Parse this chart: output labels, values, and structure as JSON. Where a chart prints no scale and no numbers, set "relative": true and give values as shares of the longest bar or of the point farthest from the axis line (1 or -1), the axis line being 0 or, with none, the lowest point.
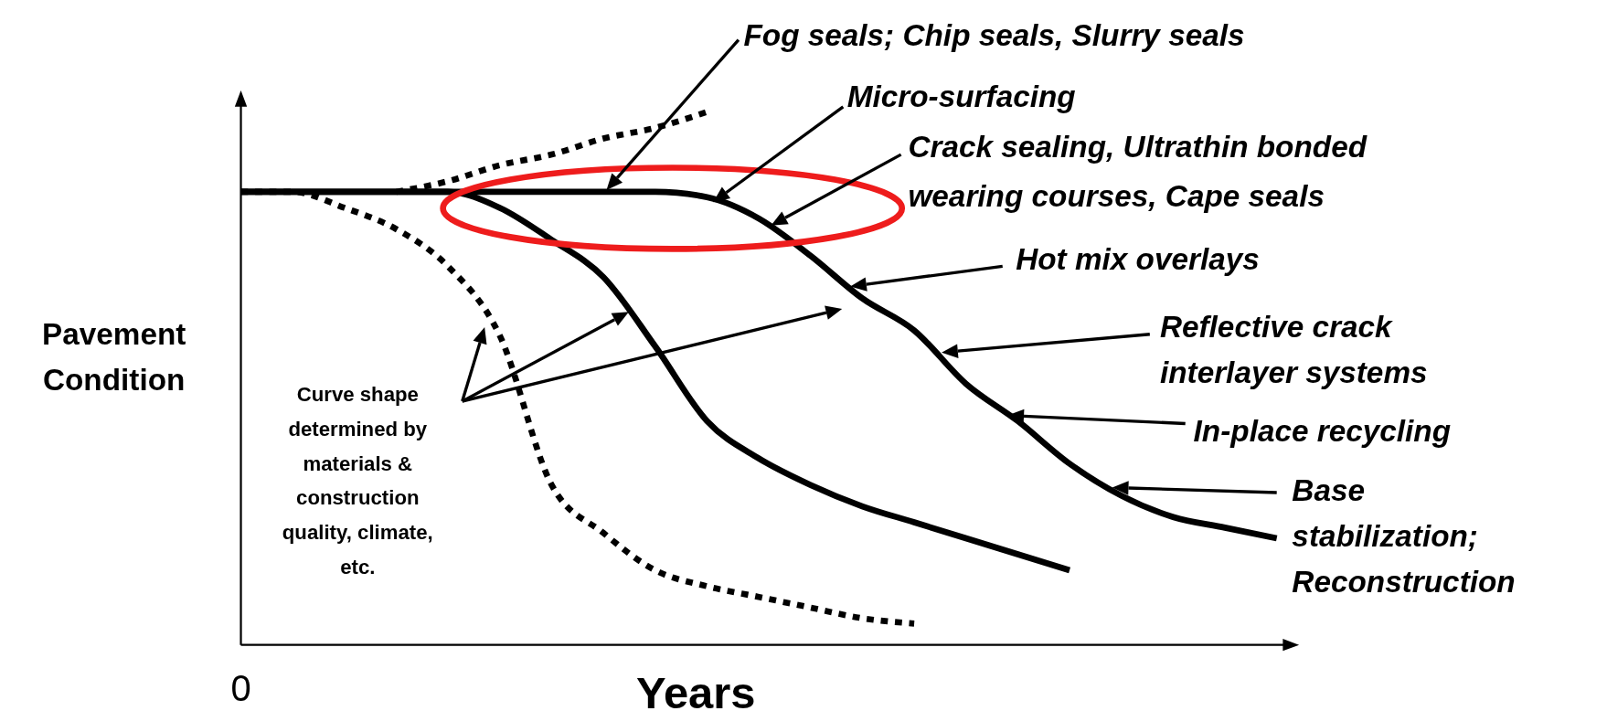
{
  "chart_data": {
    "type": "line",
    "relative": true,
    "xlabel": "Years",
    "ylabel": "Pavement Condition",
    "categories": [
      null,
      null,
      null,
      null,
      null,
      null,
      null,
      null,
      null,
      null,
      null,
      null,
      null,
      null,
      null,
      null,
      null,
      null,
      null,
      null,
      null
    ],
    "series": [
      {
        "color": "#000000",
        "line_style": "dotted",
        "values": [
          0.85,
          0.85,
          0.82,
          0.78,
          0.71,
          0.58,
          0.3,
          0.21,
          0.14,
          0.11,
          0.09,
          0.07,
          0.05,
          0.04,
          null,
          null,
          null,
          null,
          null,
          null,
          null
        ]
      },
      {
        "color": "#000000",
        "line_style": "dotted",
        "values": [
          null,
          null,
          null,
          0.85,
          0.87,
          0.9,
          0.92,
          0.95,
          0.97,
          1.0,
          null,
          null,
          null,
          null,
          null,
          null,
          null,
          null,
          null,
          null,
          null
        ]
      },
      {
        "color": "#000000",
        "line_style": "solid",
        "values": [
          0.85,
          0.85,
          0.85,
          0.85,
          0.85,
          0.82,
          0.76,
          0.69,
          0.56,
          0.42,
          0.35,
          0.3,
          0.26,
          0.23,
          0.2,
          0.17,
          0.14,
          null,
          null,
          null,
          null
        ]
      },
      {
        "color": "#000000",
        "line_style": "solid",
        "values": [
          0.85,
          0.85,
          0.85,
          0.85,
          0.85,
          0.85,
          0.85,
          0.85,
          0.85,
          0.84,
          0.8,
          0.73,
          0.65,
          0.59,
          0.49,
          0.42,
          0.34,
          0.28,
          0.24,
          0.22,
          0.2
        ]
      }
    ],
    "annotations": [
      "Fog seals; Chip seals, Slurry seals",
      "Micro-surfacing",
      "Crack sealing, Ultrathin bonded wearing courses, Cape seals",
      "Hot mix overlays",
      "Reflective crack interlayer systems",
      "In-place recycling",
      "Base stabilization; Reconstruction",
      "Curve shape determined by materials & construction quality, climate, etc.",
      "0"
    ]
  }
}
